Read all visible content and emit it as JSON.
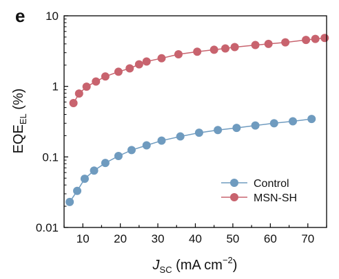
{
  "panel_label": "e",
  "chart_data": {
    "type": "scatter",
    "xlabel": {
      "main": "J",
      "sub": "SC",
      "rest": " (mA cm",
      "sup": "−2",
      "close": ")"
    },
    "ylabel": {
      "main": "EQE",
      "sub": "EL",
      "rest": " (%)"
    },
    "xlim": [
      5,
      75
    ],
    "ylim": [
      0.01,
      10
    ],
    "yscale": "log",
    "xticks": [
      10,
      20,
      30,
      40,
      50,
      60,
      70
    ],
    "yticks": [
      {
        "value": 0.01,
        "label": "0.01"
      },
      {
        "value": 0.1,
        "label": "0.1"
      },
      {
        "value": 1,
        "label": "1"
      },
      {
        "value": 10,
        "label": "10"
      }
    ],
    "grid": false,
    "legend_position": "bottom-right",
    "series": [
      {
        "name": "Control",
        "color": "#6f9bbf",
        "x": [
          6.5,
          8.5,
          10.5,
          13,
          16,
          19.5,
          23,
          27,
          31,
          36,
          41,
          46,
          51,
          56,
          61,
          66,
          71
        ],
        "y": [
          0.023,
          0.033,
          0.049,
          0.064,
          0.082,
          0.103,
          0.125,
          0.146,
          0.17,
          0.195,
          0.22,
          0.24,
          0.258,
          0.279,
          0.3,
          0.32,
          0.345
        ]
      },
      {
        "name": "MSN-SH",
        "color": "#c8636e",
        "x": [
          7.5,
          9,
          11,
          13.5,
          16,
          19.5,
          22.5,
          25,
          27,
          31,
          35.5,
          40.5,
          45,
          48,
          50.5,
          56,
          59.5,
          64,
          69.5,
          72,
          74.5
        ],
        "y": [
          0.58,
          0.79,
          0.99,
          1.17,
          1.38,
          1.61,
          1.8,
          2.05,
          2.25,
          2.5,
          2.85,
          3.1,
          3.3,
          3.45,
          3.6,
          3.85,
          4.0,
          4.2,
          4.55,
          4.7,
          4.85
        ]
      }
    ]
  }
}
